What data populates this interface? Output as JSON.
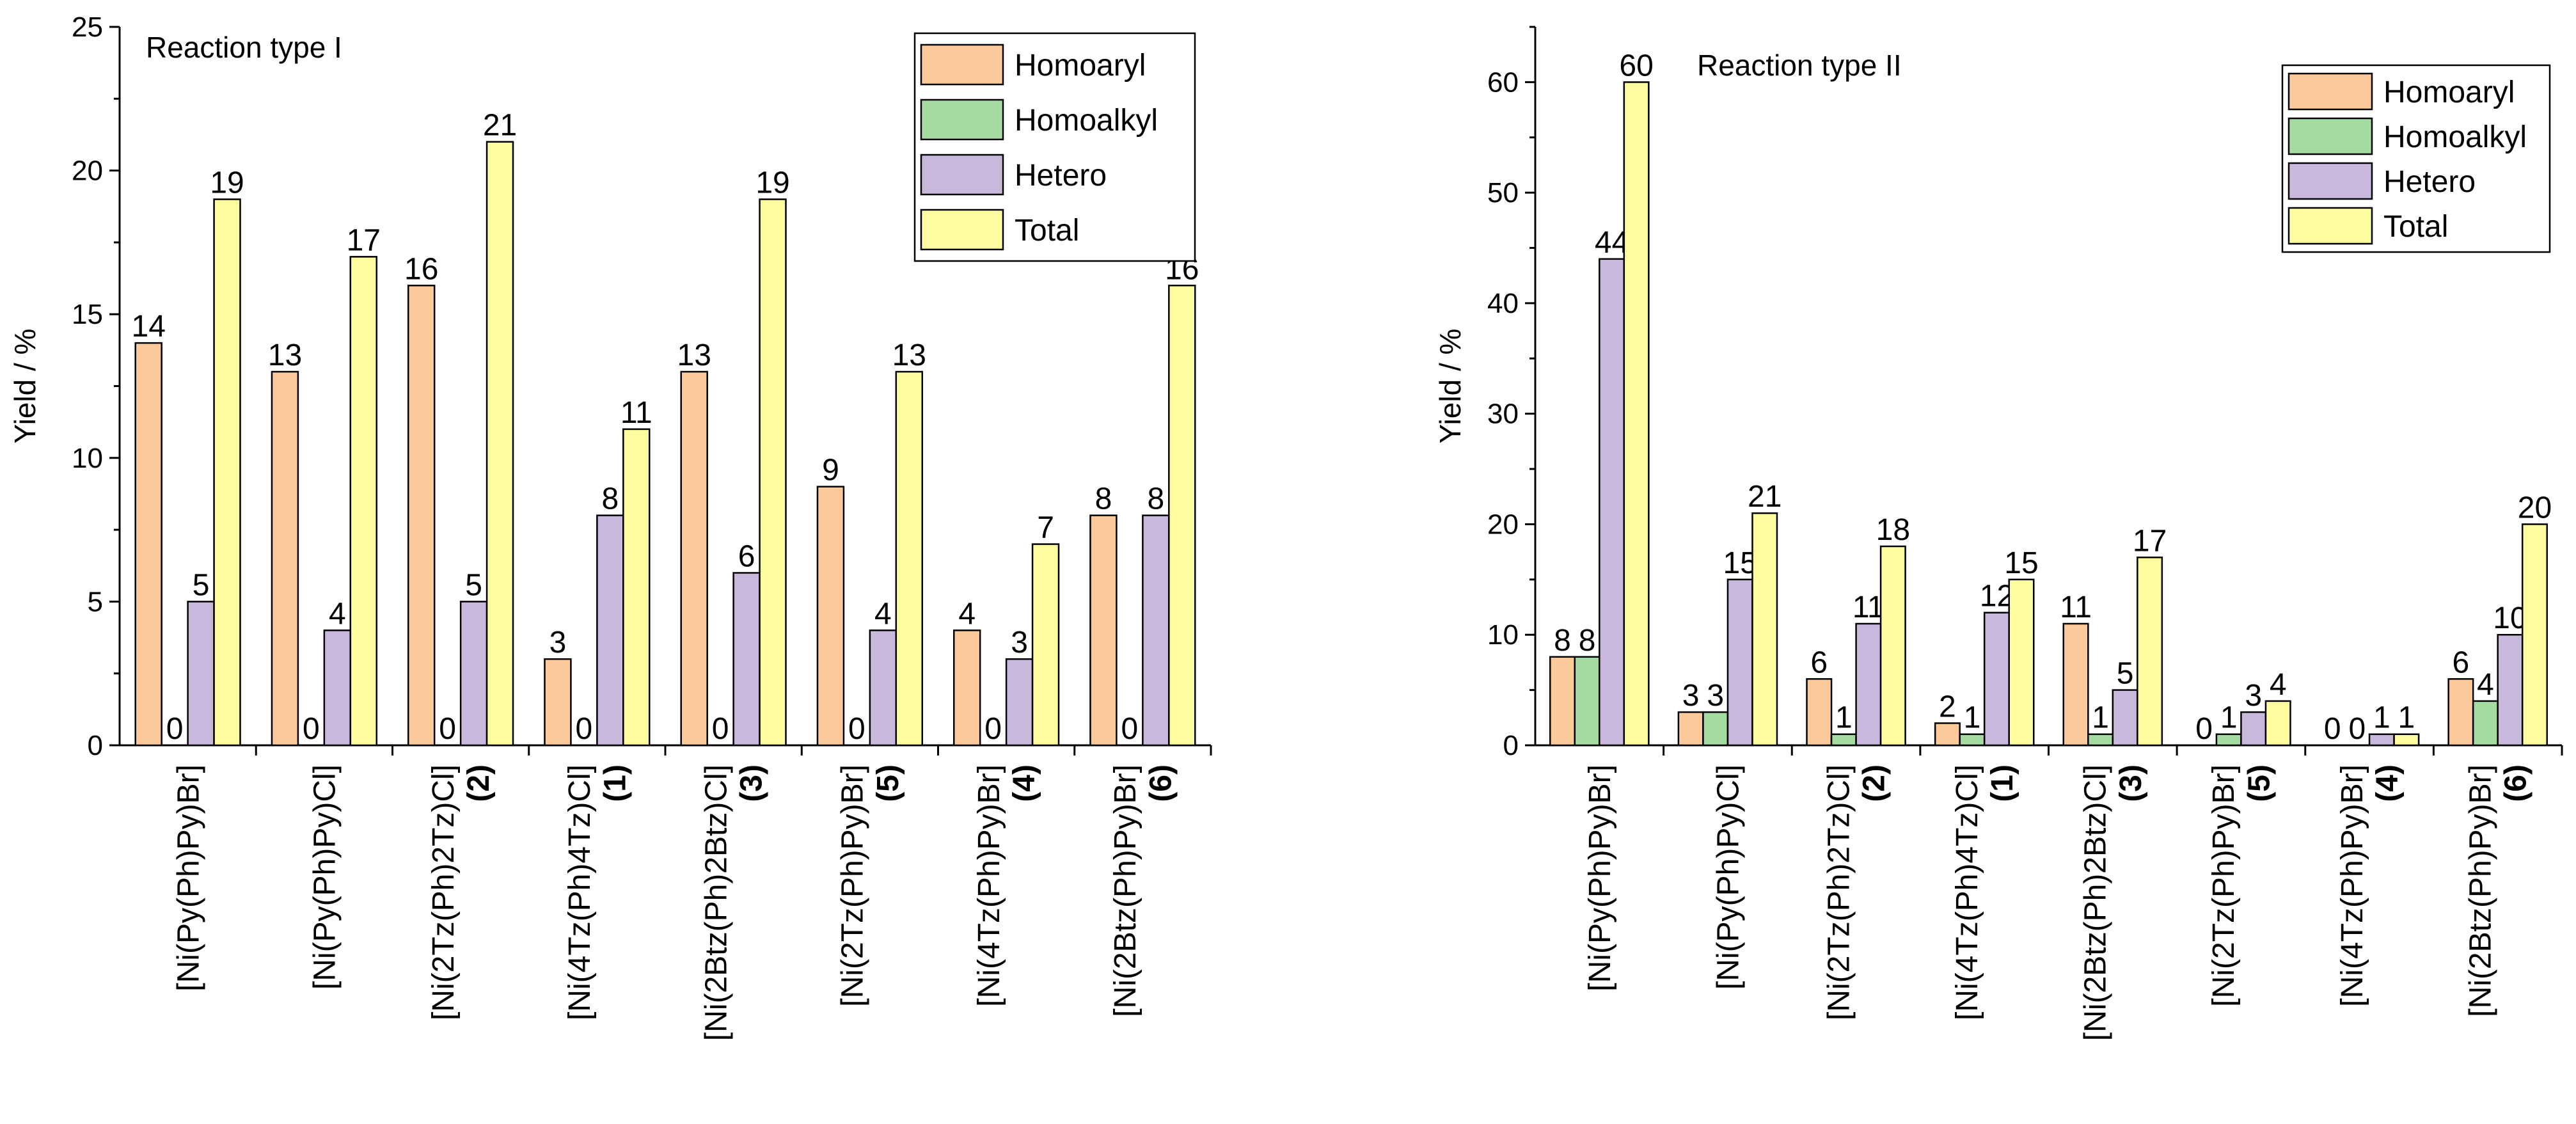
{
  "chart_data": [
    {
      "type": "bar",
      "title": "Reaction type I",
      "xlabel": "",
      "ylabel": "Yield / %",
      "ylim": [
        0,
        25
      ],
      "yticks": [
        0,
        5,
        10,
        15,
        20,
        25
      ],
      "legend_position": "top-right",
      "categories": [
        {
          "name": "[Ni(Py(Ph)Py)Br]",
          "sub": ""
        },
        {
          "name": "[Ni(Py(Ph)Py)Cl]",
          "sub": ""
        },
        {
          "name": "[Ni(2Tz(Ph)2Tz)Cl]",
          "sub": "(2)"
        },
        {
          "name": "[Ni(4Tz(Ph)4Tz)Cl]",
          "sub": "(1)"
        },
        {
          "name": "[Ni(2Btz(Ph)2Btz)Cl]",
          "sub": "(3)"
        },
        {
          "name": "[Ni(2Tz(Ph)Py)Br]",
          "sub": "(5)"
        },
        {
          "name": "[Ni(4Tz(Ph)Py)Br]",
          "sub": "(4)"
        },
        {
          "name": "[Ni(2Btz(Ph)Py)Br]",
          "sub": "(6)"
        }
      ],
      "series": [
        {
          "name": "Homoaryl",
          "color": "#FBC99A",
          "values": [
            14,
            13,
            16,
            3,
            13,
            9,
            4,
            8
          ]
        },
        {
          "name": "Homoalkyl",
          "color": "#A4DBA0",
          "values": [
            0,
            0,
            0,
            0,
            0,
            0,
            0,
            0
          ]
        },
        {
          "name": "Hetero",
          "color": "#C7B8DC",
          "values": [
            5,
            4,
            5,
            8,
            6,
            4,
            3,
            8
          ]
        },
        {
          "name": "Total",
          "color": "#FDFDA0",
          "values": [
            19,
            17,
            21,
            11,
            19,
            13,
            7,
            16
          ]
        }
      ]
    },
    {
      "type": "bar",
      "title": "Reaction type II",
      "xlabel": "",
      "ylabel": "Yield / %",
      "ylim": [
        0,
        65
      ],
      "yticks": [
        0,
        10,
        20,
        30,
        40,
        50,
        60
      ],
      "legend_position": "top-right",
      "categories": [
        {
          "name": "[Ni(Py(Ph)Py)Br]",
          "sub": ""
        },
        {
          "name": "[Ni(Py(Ph)Py)Cl]",
          "sub": ""
        },
        {
          "name": "[Ni(2Tz(Ph)2Tz)Cl]",
          "sub": "(2)"
        },
        {
          "name": "[Ni(4Tz(Ph)4Tz)Cl]",
          "sub": "(1)"
        },
        {
          "name": "[Ni(2Btz(Ph)2Btz)Cl]",
          "sub": "(3)"
        },
        {
          "name": "[Ni(2Tz(Ph)Py)Br]",
          "sub": "(5)"
        },
        {
          "name": "[Ni(4Tz(Ph)Py)Br]",
          "sub": "(4)"
        },
        {
          "name": "[Ni(2Btz(Ph)Py)Br]",
          "sub": "(6)"
        }
      ],
      "series": [
        {
          "name": "Homoaryl",
          "color": "#FBC99A",
          "values": [
            8,
            3,
            6,
            2,
            11,
            0,
            0,
            6
          ]
        },
        {
          "name": "Homoalkyl",
          "color": "#A4DBA0",
          "values": [
            8,
            3,
            1,
            1,
            1,
            1,
            0,
            4
          ]
        },
        {
          "name": "Hetero",
          "color": "#C7B8DC",
          "values": [
            44,
            15,
            11,
            12,
            5,
            3,
            1,
            10
          ]
        },
        {
          "name": "Total",
          "color": "#FDFDA0",
          "values": [
            60,
            21,
            18,
            15,
            17,
            4,
            1,
            20
          ]
        }
      ]
    }
  ]
}
